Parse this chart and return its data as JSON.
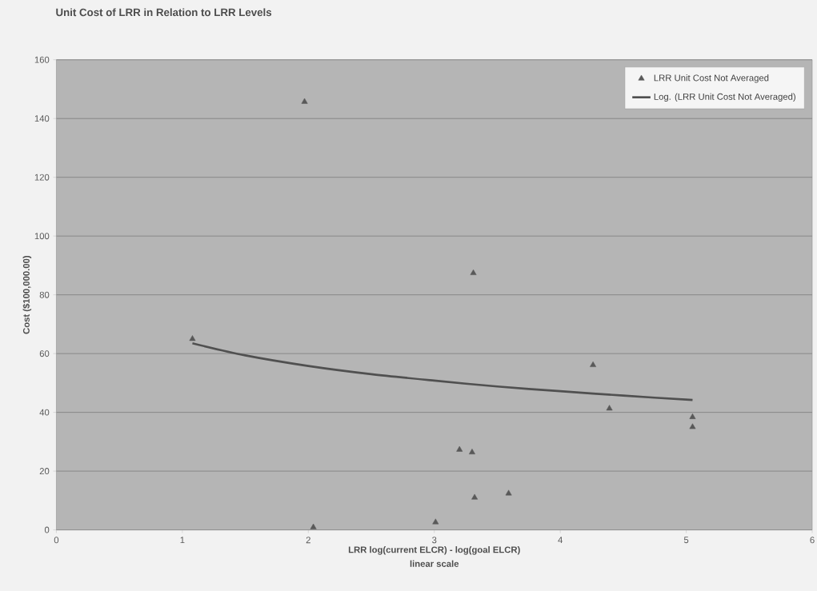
{
  "chart_data": {
    "type": "scatter",
    "title": "Unit Cost of LRR in Relation to LRR Levels",
    "xlabel": "LRR log(current ELCR) - log(goal ELCR)",
    "ylabel": "Cost ($100,000.00)",
    "annotations": [
      "linear scale"
    ],
    "xlim": [
      0,
      6
    ],
    "xticks": [
      0,
      1,
      2,
      3,
      4,
      5,
      6
    ],
    "ylim": [
      0,
      160
    ],
    "yticks": [
      0,
      20,
      40,
      60,
      80,
      100,
      120,
      140,
      160
    ],
    "grid": "y",
    "legend": "top right",
    "series": [
      {
        "name": "LRR Unit Cost Not Averaged",
        "marker": "triangle",
        "color": "#595959",
        "x": [
          1.08,
          1.97,
          2.04,
          3.01,
          3.2,
          3.3,
          3.31,
          3.32,
          3.59,
          4.26,
          4.39,
          5.05,
          5.05
        ],
        "values": [
          65,
          145.7,
          0.9,
          2.6,
          27.3,
          26.4,
          87.4,
          11,
          12.4,
          56.1,
          41.3,
          38.4,
          35
        ]
      },
      {
        "name": "Log. (LRR Unit Cost Not Averaged)",
        "type": "line",
        "marker": "none",
        "color": "#505050",
        "x": [
          1.08,
          1.5,
          2,
          2.5,
          3,
          3.5,
          4,
          4.5,
          5.05
        ],
        "values": [
          63.5,
          59.4,
          55.8,
          53,
          50.8,
          48.8,
          47.2,
          45.7,
          44.2
        ]
      }
    ]
  }
}
